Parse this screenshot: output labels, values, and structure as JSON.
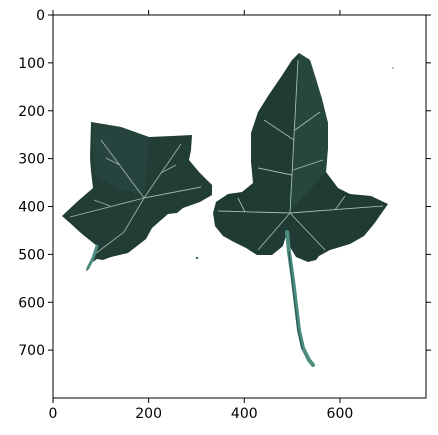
{
  "image": {
    "subject": "two ivy leaves",
    "colors": {
      "leaf_dark": "#1f3b33",
      "leaf_mid": "#2c4f45",
      "vein": "#b9cfc7",
      "stem": "#4d8d80",
      "background": "#ffffff"
    }
  },
  "axes": {
    "x_ticks": [
      {
        "value": 0,
        "label": "0"
      },
      {
        "value": 200,
        "label": "200"
      },
      {
        "value": 400,
        "label": "400"
      },
      {
        "value": 600,
        "label": "600"
      }
    ],
    "y_ticks": [
      {
        "value": 0,
        "label": "0"
      },
      {
        "value": 100,
        "label": "100"
      },
      {
        "value": 200,
        "label": "200"
      },
      {
        "value": 300,
        "label": "300"
      },
      {
        "value": 400,
        "label": "400"
      },
      {
        "value": 500,
        "label": "500"
      },
      {
        "value": 600,
        "label": "600"
      },
      {
        "value": 700,
        "label": "700"
      }
    ],
    "x_range": [
      0,
      780
    ],
    "y_range": [
      800,
      0
    ]
  }
}
